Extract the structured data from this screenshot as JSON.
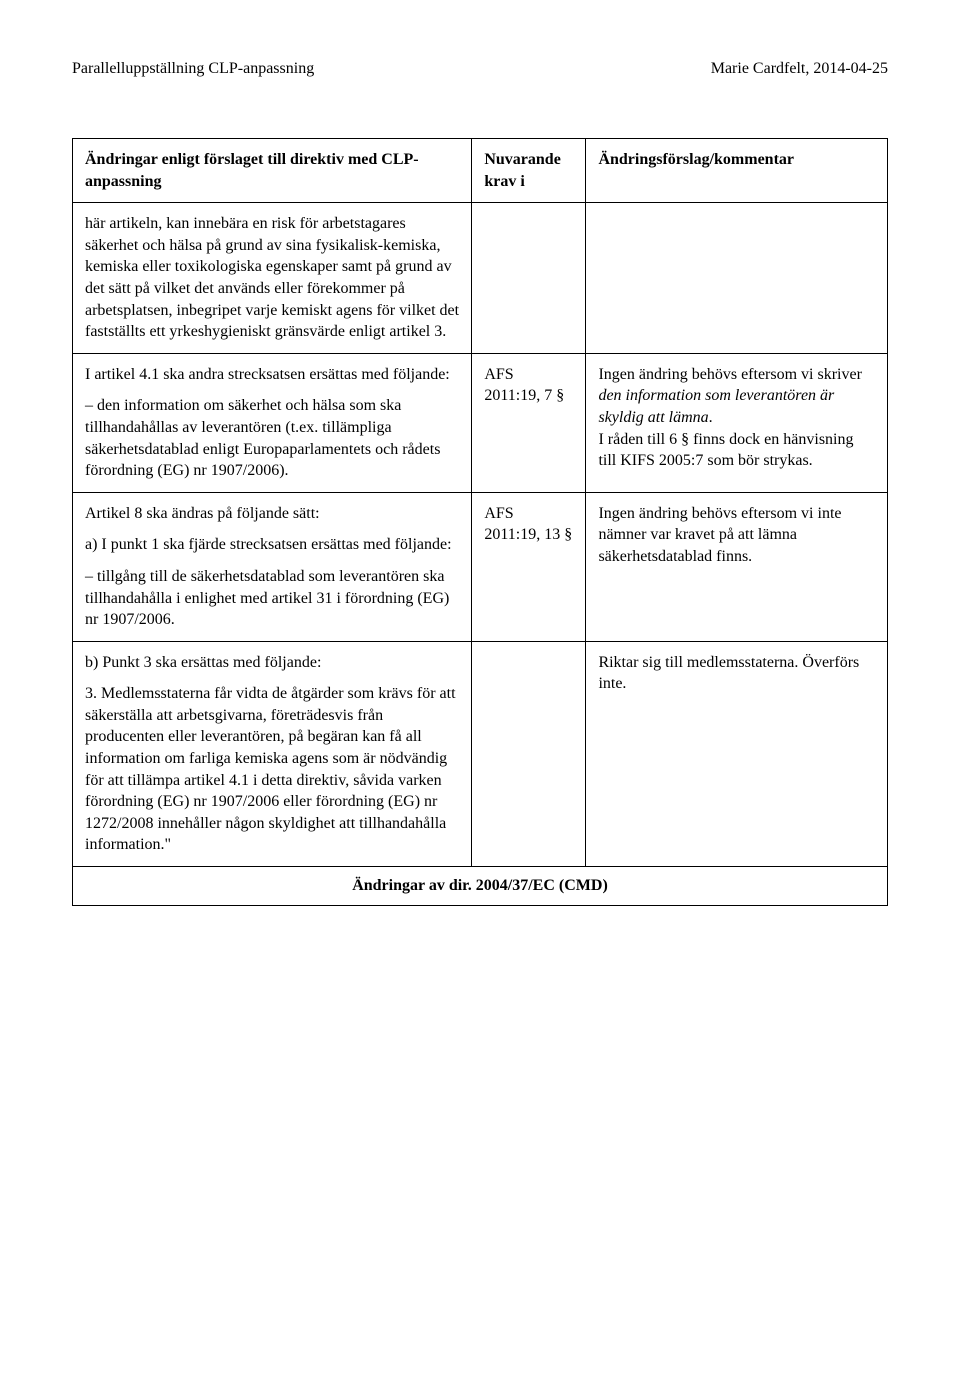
{
  "header": {
    "left": "Parallelluppställning CLP-anpassning",
    "right": "Marie Cardfelt, 2014-04-25"
  },
  "table": {
    "headers": {
      "col1": "Ändringar enligt förslaget till direktiv med CLP-anpassning",
      "col2": "Nuvarande krav i",
      "col3": "Ändringsförslag/kommentar"
    },
    "rows": [
      {
        "c1_paras": [
          "här artikeln, kan innebära en risk för arbetstagares säkerhet och hälsa på grund av sina fysikalisk-kemiska, kemiska eller toxikologiska egenskaper samt på grund av det sätt på vilket det används eller förekommer på arbetsplatsen, inbegripet varje kemiskt agens för vilket det fastställts ett yrkeshygieniskt gränsvärde enligt artikel 3."
        ],
        "c2": "",
        "c3_paras": []
      },
      {
        "c1_paras": [
          "I artikel 4.1 ska andra strecksatsen ersättas med följande:",
          "– den information om säkerhet och hälsa som ska tillhandahållas av leverantören (t.ex. tillämpliga säkerhetsdatablad enligt Europaparlamentets och rådets förordning (EG) nr 1907/2006)."
        ],
        "c2": "AFS 2011:19, 7 §",
        "c3_html": "Ingen ändring behövs eftersom vi skriver <em>den information som leverantören är skyldig att lämna</em>.<br>I råden till 6 § finns dock en hänvisning till KIFS 2005:7 som bör strykas."
      },
      {
        "c1_paras": [
          "Artikel 8 ska ändras på följande sätt:",
          "a) I punkt 1 ska fjärde strecksatsen ersättas med följande:",
          "– tillgång till de säkerhetsdatablad som leverantören ska tillhandahålla i enlighet med artikel 31 i förordning (EG) nr 1907/2006."
        ],
        "c2": "AFS 2011:19, 13 §",
        "c3_paras": [
          "Ingen ändring behövs eftersom vi inte nämner var kravet på att lämna säkerhetsdatablad finns."
        ]
      },
      {
        "c1_paras": [
          "b) Punkt 3 ska ersättas med följande:",
          "3. Medlemsstaterna får vidta de åtgärder som krävs för att säkerställa att arbetsgivarna, företrädesvis från producenten eller leverantören, på begäran kan få all information om farliga kemiska agens som är nödvändig för att tillämpa artikel 4.1 i detta direktiv, såvida varken förordning (EG) nr 1907/2006 eller förordning (EG) nr 1272/2008 innehåller någon skyldighet att tillhandahålla information.\""
        ],
        "c2": "",
        "c3_paras": [
          "Riktar sig till medlemsstaterna. Överförs inte."
        ]
      }
    ],
    "footer": "Ändringar av dir. 2004/37/EC (CMD)"
  }
}
